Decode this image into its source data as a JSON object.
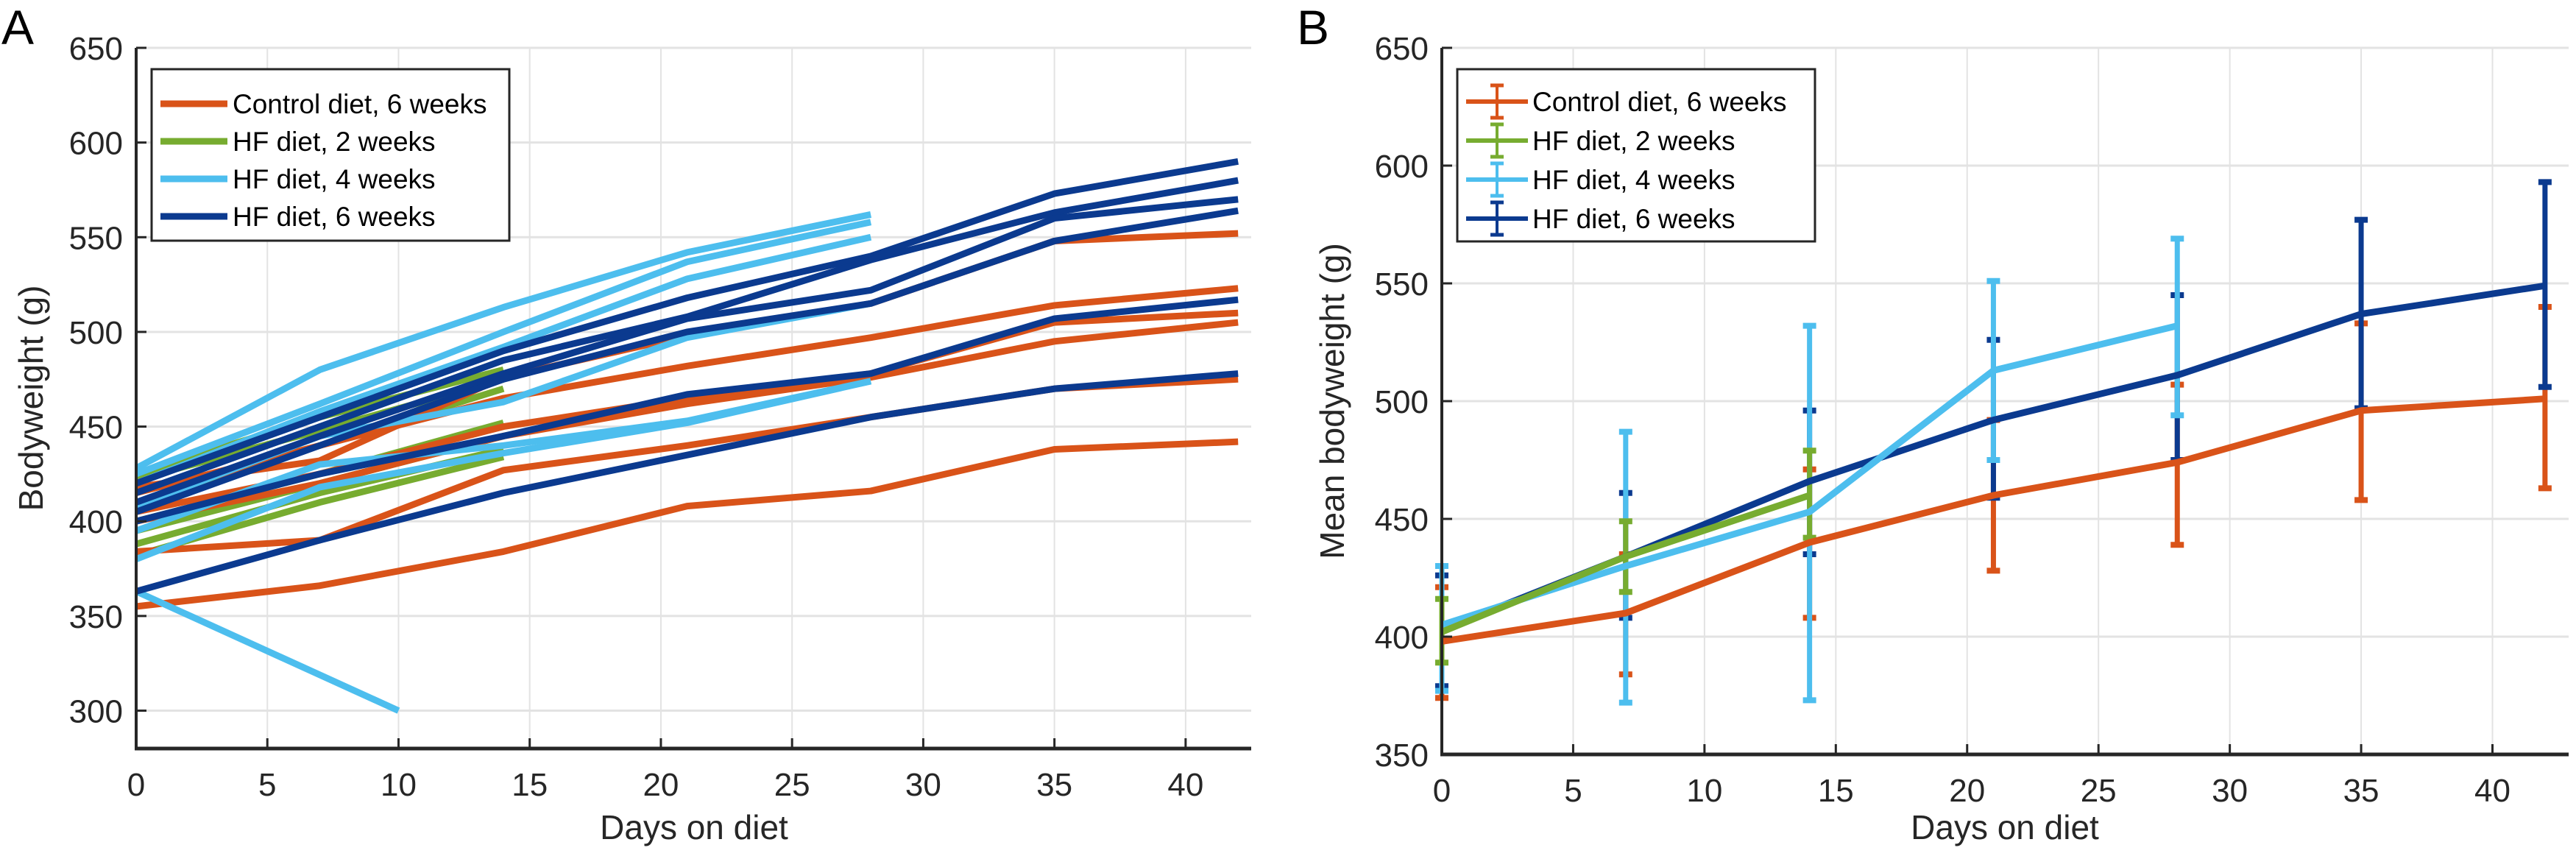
{
  "chart_data": [
    {
      "panel": "A",
      "type": "line",
      "title": "",
      "xlabel": "Days on diet",
      "ylabel": "Bodyweight (g)",
      "xlim": [
        0,
        42.5
      ],
      "ylim": [
        280,
        650
      ],
      "xticks": [
        0,
        5,
        10,
        15,
        20,
        25,
        30,
        35,
        40
      ],
      "yticks": [
        300,
        350,
        400,
        450,
        500,
        550,
        600,
        650
      ],
      "grid": true,
      "legend_position": "top-left",
      "legend": [
        {
          "name": "Control diet, 6 weeks",
          "color": "#D95319"
        },
        {
          "name": "HF diet, 2 weeks",
          "color": "#77AC30"
        },
        {
          "name": "HF diet, 4 weeks",
          "color": "#4DBEEE"
        },
        {
          "name": "HF diet, 6 weeks",
          "color": "#0B3A8F"
        }
      ],
      "series": [
        {
          "group": "HF diet, 2 weeks",
          "color": "#77AC30",
          "x": [
            0,
            7,
            14
          ],
          "y": [
            425,
            455,
            480
          ]
        },
        {
          "group": "HF diet, 2 weeks",
          "color": "#77AC30",
          "x": [
            0,
            7,
            14
          ],
          "y": [
            422,
            448,
            475
          ]
        },
        {
          "group": "HF diet, 2 weeks",
          "color": "#77AC30",
          "x": [
            0,
            7,
            14
          ],
          "y": [
            410,
            440,
            470
          ]
        },
        {
          "group": "HF diet, 2 weeks",
          "color": "#77AC30",
          "x": [
            0,
            7,
            14
          ],
          "y": [
            400,
            425,
            452
          ]
        },
        {
          "group": "HF diet, 2 weeks",
          "color": "#77AC30",
          "x": [
            0,
            7,
            14
          ],
          "y": [
            395,
            420,
            445
          ]
        },
        {
          "group": "HF diet, 2 weeks",
          "color": "#77AC30",
          "x": [
            0,
            7,
            14
          ],
          "y": [
            388,
            415,
            438
          ]
        },
        {
          "group": "HF diet, 2 weeks",
          "color": "#77AC30",
          "x": [
            0,
            7,
            14
          ],
          "y": [
            382,
            410,
            434
          ]
        },
        {
          "group": "Control diet, 6 weeks",
          "color": "#D95319",
          "x": [
            0,
            7,
            14,
            21,
            28,
            35,
            42
          ],
          "y": [
            418,
            432,
            476,
            498,
            515,
            548,
            552
          ]
        },
        {
          "group": "Control diet, 6 weeks",
          "color": "#D95319",
          "x": [
            0,
            7,
            14,
            21,
            28,
            35,
            42
          ],
          "y": [
            415,
            440,
            465,
            482,
            497,
            514,
            523
          ]
        },
        {
          "group": "Control diet, 6 weeks",
          "color": "#D95319",
          "x": [
            0,
            7,
            14,
            21,
            28,
            35,
            42
          ],
          "y": [
            405,
            425,
            450,
            465,
            478,
            505,
            510
          ]
        },
        {
          "group": "Control diet, 6 weeks",
          "color": "#D95319",
          "x": [
            0,
            7,
            14,
            21,
            28,
            35,
            42
          ],
          "y": [
            400,
            420,
            445,
            462,
            476,
            495,
            505
          ]
        },
        {
          "group": "Control diet, 6 weeks",
          "color": "#D95319",
          "x": [
            0,
            7,
            14,
            21,
            28,
            35,
            42
          ],
          "y": [
            384,
            390,
            427,
            440,
            455,
            470,
            475
          ]
        },
        {
          "group": "Control diet, 6 weeks",
          "color": "#D95319",
          "x": [
            0,
            7,
            14,
            21,
            28,
            35,
            42
          ],
          "y": [
            355,
            366,
            384,
            408,
            416,
            438,
            442
          ]
        },
        {
          "group": "HF diet, 4 weeks",
          "color": "#4DBEEE",
          "x": [
            0,
            7,
            14,
            21,
            28
          ],
          "y": [
            428,
            480,
            513,
            542,
            562
          ]
        },
        {
          "group": "HF diet, 4 weeks",
          "color": "#4DBEEE",
          "x": [
            0,
            7,
            14,
            21,
            28
          ],
          "y": [
            425,
            462,
            500,
            537,
            558
          ]
        },
        {
          "group": "HF diet, 4 weeks",
          "color": "#4DBEEE",
          "x": [
            0,
            7,
            14,
            21,
            28
          ],
          "y": [
            420,
            458,
            492,
            528,
            550
          ]
        },
        {
          "group": "HF diet, 4 weeks",
          "color": "#4DBEEE",
          "x": [
            0,
            7,
            14,
            21,
            28
          ],
          "y": [
            408,
            445,
            463,
            497,
            515
          ]
        },
        {
          "group": "HF diet, 4 weeks",
          "color": "#4DBEEE",
          "x": [
            0,
            7,
            14,
            21,
            28
          ],
          "y": [
            395,
            430,
            440,
            453,
            474
          ]
        },
        {
          "group": "HF diet, 4 weeks",
          "color": "#4DBEEE",
          "x": [
            0,
            7,
            14,
            21,
            28
          ],
          "y": [
            380,
            418,
            436,
            452,
            474
          ]
        },
        {
          "group": "HF diet, 4 weeks",
          "color": "#4DBEEE",
          "x": [
            0,
            10
          ],
          "y": [
            363,
            300
          ]
        },
        {
          "group": "HF diet, 6 weeks",
          "color": "#0B3A8F",
          "x": [
            0,
            7,
            14,
            21,
            28,
            35,
            42
          ],
          "y": [
            420,
            455,
            490,
            518,
            540,
            573,
            590
          ]
        },
        {
          "group": "HF diet, 6 weeks",
          "color": "#0B3A8F",
          "x": [
            0,
            7,
            14,
            21,
            28,
            35,
            42
          ],
          "y": [
            415,
            450,
            485,
            508,
            538,
            563,
            580
          ]
        },
        {
          "group": "HF diet, 6 weeks",
          "color": "#0B3A8F",
          "x": [
            0,
            7,
            14,
            21,
            28,
            35,
            42
          ],
          "y": [
            410,
            445,
            478,
            507,
            522,
            560,
            570
          ]
        },
        {
          "group": "HF diet, 6 weeks",
          "color": "#0B3A8F",
          "x": [
            0,
            7,
            14,
            21,
            28,
            35,
            42
          ],
          "y": [
            405,
            440,
            475,
            500,
            515,
            548,
            564
          ]
        },
        {
          "group": "HF diet, 6 weeks",
          "color": "#0B3A8F",
          "x": [
            0,
            7,
            14,
            21,
            28,
            35,
            42
          ],
          "y": [
            400,
            425,
            445,
            467,
            478,
            507,
            517
          ]
        },
        {
          "group": "HF diet, 6 weeks",
          "color": "#0B3A8F",
          "x": [
            0,
            7,
            14,
            21,
            28,
            35,
            42
          ],
          "y": [
            363,
            390,
            415,
            435,
            455,
            470,
            478
          ]
        }
      ]
    },
    {
      "panel": "B",
      "type": "line",
      "title": "",
      "xlabel": "Days on diet",
      "ylabel": "Mean bodyweight (g)",
      "xlim": [
        0,
        42.9
      ],
      "ylim": [
        350,
        650
      ],
      "xticks": [
        0,
        5,
        10,
        15,
        20,
        25,
        30,
        35,
        40
      ],
      "yticks": [
        350,
        400,
        450,
        500,
        550,
        600,
        650
      ],
      "grid": true,
      "legend_position": "top-left",
      "legend": [
        {
          "name": "Control diet, 6 weeks",
          "color": "#D95319"
        },
        {
          "name": "HF diet, 2 weeks",
          "color": "#77AC30"
        },
        {
          "name": "HF diet, 4 weeks",
          "color": "#4DBEEE"
        },
        {
          "name": "HF diet, 6 weeks",
          "color": "#0B3A8F"
        }
      ],
      "series": [
        {
          "name": "Control diet, 6 weeks",
          "color": "#D95319",
          "x": [
            0,
            7,
            14,
            21,
            28,
            35,
            42
          ],
          "y": [
            398,
            410,
            440,
            460,
            474,
            496,
            501
          ],
          "err_low": [
            374,
            384,
            408,
            428,
            439,
            458,
            463
          ],
          "err_high": [
            421,
            435,
            471,
            492,
            507,
            533,
            540
          ]
        },
        {
          "name": "HF diet, 6 weeks",
          "color": "#0B3A8F",
          "x": [
            0,
            7,
            14,
            21,
            28,
            35,
            42
          ],
          "y": [
            403,
            434,
            466,
            492,
            511,
            537,
            549
          ],
          "err_low": [
            379,
            408,
            435,
            459,
            475,
            497,
            506
          ],
          "err_high": [
            426,
            461,
            496,
            526,
            545,
            577,
            593
          ]
        },
        {
          "name": "HF diet, 4 weeks",
          "color": "#4DBEEE",
          "x": [
            0,
            7,
            14,
            21,
            28
          ],
          "y": [
            405,
            430,
            453,
            513,
            532
          ],
          "err_low": [
            377,
            372,
            373,
            475,
            494
          ],
          "err_high": [
            430,
            487,
            532,
            551,
            569
          ]
        },
        {
          "name": "HF diet, 2 weeks",
          "color": "#77AC30",
          "x": [
            0,
            7,
            14
          ],
          "y": [
            402,
            434,
            460
          ],
          "err_low": [
            389,
            419,
            442
          ],
          "err_high": [
            416,
            449,
            479
          ]
        }
      ]
    }
  ],
  "labels": {
    "panel_a": "A",
    "panel_b": "B"
  }
}
